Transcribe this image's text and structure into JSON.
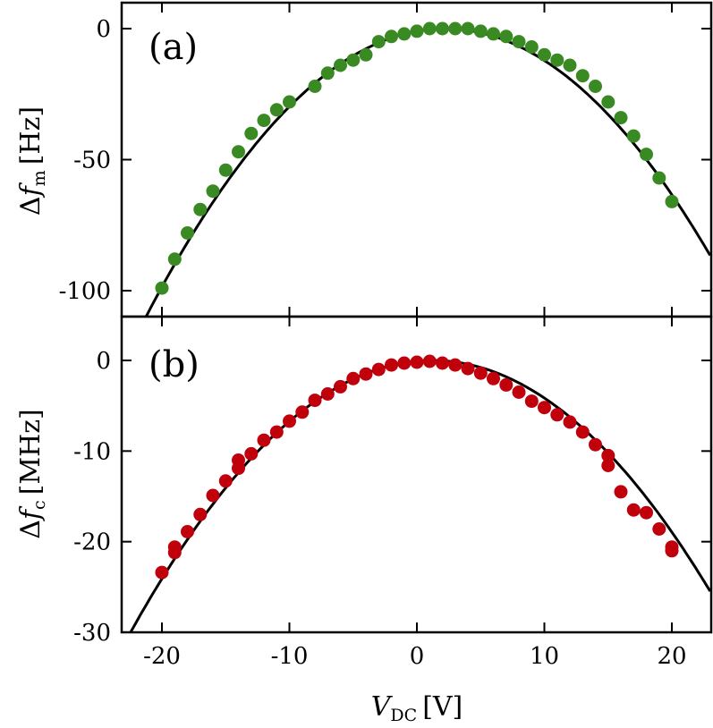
{
  "chart_data": [
    {
      "type": "scatter",
      "panel_label": "(a)",
      "ylabel_delta": "Δ",
      "ylabel_var": "f",
      "ylabel_sub": "m",
      "ylabel_unit": "[Hz]",
      "xlim": [
        -23,
        23
      ],
      "ylim": [
        -110,
        10
      ],
      "yticks": [
        0,
        -50,
        -100
      ],
      "ytick_labels": [
        "0",
        "-50",
        "-100"
      ],
      "xticks": [
        -20,
        -10,
        0,
        10,
        20
      ],
      "marker_color": "#3a8a23",
      "fit": {
        "vertex_x": 2.2,
        "vertex_y": 0,
        "curvature": 0.2
      },
      "fit_color": "#000000",
      "series": [
        {
          "name": "data",
          "x": [
            -20,
            -19,
            -18,
            -17,
            -16,
            -15,
            -14,
            -13,
            -12,
            -11,
            -10,
            -8,
            -7,
            -6,
            -5,
            -4,
            -3,
            -2,
            -1,
            0,
            1,
            2,
            3,
            4,
            5,
            6,
            7,
            8,
            9,
            10,
            11,
            12,
            13,
            14,
            15,
            16,
            17,
            18,
            19,
            20
          ],
          "y": [
            -99,
            -88,
            -78,
            -69,
            -62,
            -54,
            -47,
            -40,
            -35,
            -31,
            -28,
            -22,
            -17,
            -14,
            -12,
            -10,
            -5,
            -3,
            -2,
            -1,
            0,
            0,
            0,
            0,
            -1,
            -2,
            -3,
            -5,
            -7,
            -10,
            -12,
            -14,
            -18,
            -22,
            -28,
            -34,
            -41,
            -48,
            -57,
            -66
          ]
        }
      ]
    },
    {
      "type": "scatter",
      "panel_label": "(b)",
      "ylabel_delta": "Δ",
      "ylabel_var": "f",
      "ylabel_sub": "c",
      "ylabel_unit": "[MHz]",
      "xlim": [
        -23,
        23
      ],
      "ylim": [
        -30,
        5
      ],
      "yticks": [
        0,
        -10,
        -20,
        -30
      ],
      "ytick_labels": [
        "0",
        "-10",
        "-20",
        "-30"
      ],
      "xticks": [
        -20,
        -10,
        0,
        10,
        20
      ],
      "xtick_labels": [
        "-20",
        "-10",
        "0",
        "10",
        "20"
      ],
      "xlabel_var": "V",
      "xlabel_sub": "DC",
      "xlabel_unit": "[V]",
      "marker_color": "#c0000b",
      "fit": {
        "vertex_x": 1.2,
        "vertex_y": 0,
        "curvature": 0.0536
      },
      "fit_color": "#000000",
      "series": [
        {
          "name": "data",
          "x": [
            -20,
            -19,
            -19,
            -18,
            -17,
            -16,
            -15,
            -14,
            -14,
            -13,
            -12,
            -11,
            -10,
            -9,
            -8,
            -7,
            -6,
            -5,
            -4,
            -3,
            -2,
            -1,
            0,
            1,
            2,
            3,
            4,
            5,
            6,
            7,
            8,
            9,
            10,
            11,
            12,
            13,
            14,
            15,
            15,
            16,
            17,
            18,
            19,
            20,
            20
          ],
          "y": [
            -23.4,
            -21.2,
            -20.6,
            -18.9,
            -17,
            -14.9,
            -13.3,
            -11.9,
            -11,
            -10.3,
            -8.8,
            -7.9,
            -6.7,
            -5.7,
            -4.4,
            -3.7,
            -2.9,
            -2,
            -1.5,
            -1,
            -0.5,
            -0.3,
            -0.2,
            -0.1,
            -0.3,
            -0.5,
            -0.9,
            -1.4,
            -2,
            -2.7,
            -3.5,
            -4.5,
            -5.2,
            -6,
            -6.8,
            -7.9,
            -9.3,
            -10.5,
            -11.6,
            -14.5,
            -16.5,
            -16.8,
            -18.6,
            -20.6,
            -21
          ]
        }
      ]
    }
  ]
}
